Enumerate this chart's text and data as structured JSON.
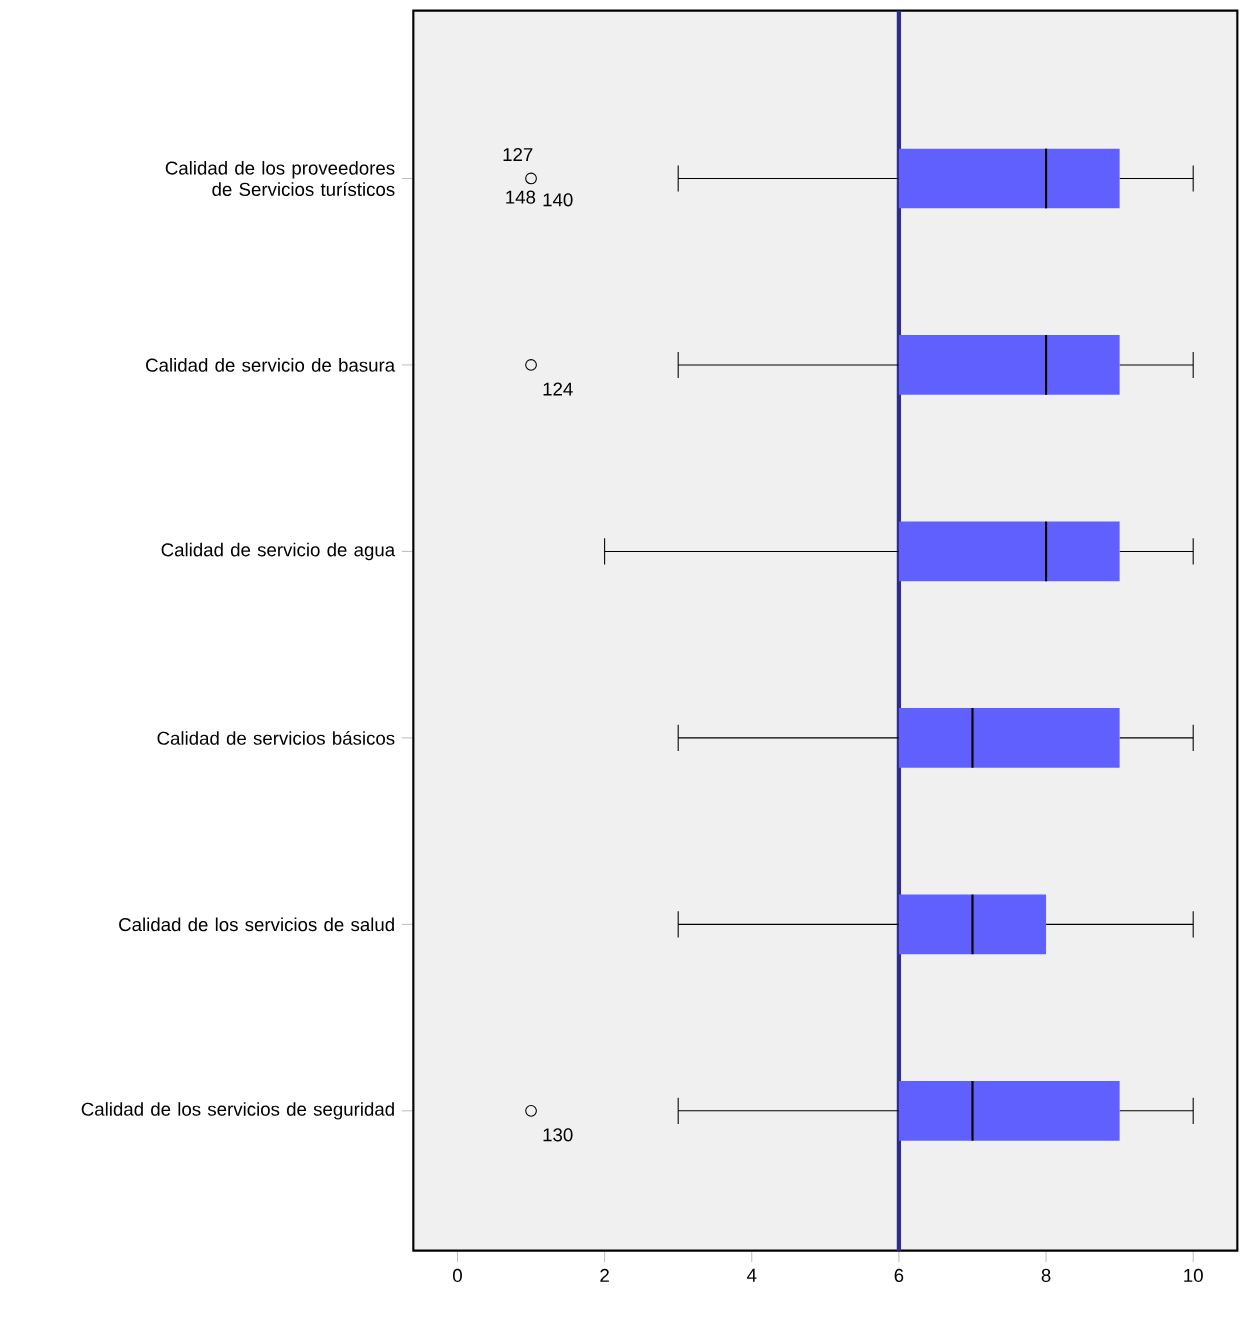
{
  "chart_data": {
    "type": "box",
    "orientation": "horizontal",
    "categories": [
      "Calidad de los proveedores de Servicios turísticos",
      "Calidad de servicio de basura",
      "Calidad de servicio de agua",
      "Calidad de servicios básicos",
      "Calidad de los servicios de salud",
      "Calidad de los servicios de seguridad"
    ],
    "boxes": [
      {
        "low": 3,
        "q1": 6,
        "median": 8,
        "q3": 9,
        "high": 10,
        "outliers": [
          1
        ]
      },
      {
        "low": 3,
        "q1": 6,
        "median": 8,
        "q3": 9,
        "high": 10,
        "outliers": [
          1
        ]
      },
      {
        "low": 2,
        "q1": 6,
        "median": 8,
        "q3": 9,
        "high": 10
      },
      {
        "low": 3,
        "q1": 6,
        "median": 7,
        "q3": 9,
        "high": 10
      },
      {
        "low": 3,
        "q1": 6,
        "median": 7,
        "q3": 8,
        "high": 10
      },
      {
        "low": 3,
        "q1": 6,
        "median": 7,
        "q3": 9,
        "high": 10,
        "outliers": [
          1
        ]
      }
    ],
    "color": "#6060ff",
    "xlim": [
      -0.6,
      10.6
    ],
    "xticks": [
      0,
      2,
      4,
      6,
      8,
      10
    ],
    "ref_lines": [
      {
        "axis": "x",
        "value": 6,
        "color": "#2e2e8a"
      }
    ],
    "annotations": [
      "127",
      "148",
      "140",
      "124",
      "130"
    ]
  }
}
